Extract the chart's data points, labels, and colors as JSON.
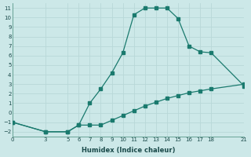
{
  "xlabel": "Humidex (Indice chaleur)",
  "background_color": "#cce8e8",
  "line_color": "#1a7a6e",
  "grid_color": "#b8d8d8",
  "curve1_x": [
    0,
    3,
    5,
    6,
    7,
    8,
    9,
    10,
    11,
    12,
    13,
    14,
    15,
    16,
    17,
    18,
    21
  ],
  "curve1_y": [
    -1,
    -2,
    -2,
    -1.3,
    1,
    2.5,
    4.2,
    6.3,
    10.3,
    11,
    11,
    11,
    9.9,
    7,
    6.4,
    6.3,
    2.8
  ],
  "curve2_x": [
    0,
    3,
    5,
    6,
    7,
    8,
    9,
    10,
    11,
    12,
    13,
    14,
    15,
    16,
    17,
    18,
    21
  ],
  "curve2_y": [
    -1,
    -2,
    -2,
    -1.3,
    -1.3,
    -1.3,
    -0.8,
    -0.3,
    0.2,
    0.7,
    1.1,
    1.5,
    1.8,
    2.1,
    2.3,
    2.5,
    3.0
  ],
  "xlim": [
    0,
    21
  ],
  "ylim": [
    -2.5,
    11.5
  ],
  "xticks": [
    0,
    3,
    5,
    6,
    7,
    8,
    9,
    10,
    11,
    12,
    13,
    14,
    15,
    16,
    17,
    18,
    21
  ],
  "yticks": [
    -2,
    -1,
    0,
    1,
    2,
    3,
    4,
    5,
    6,
    7,
    8,
    9,
    10,
    11
  ]
}
